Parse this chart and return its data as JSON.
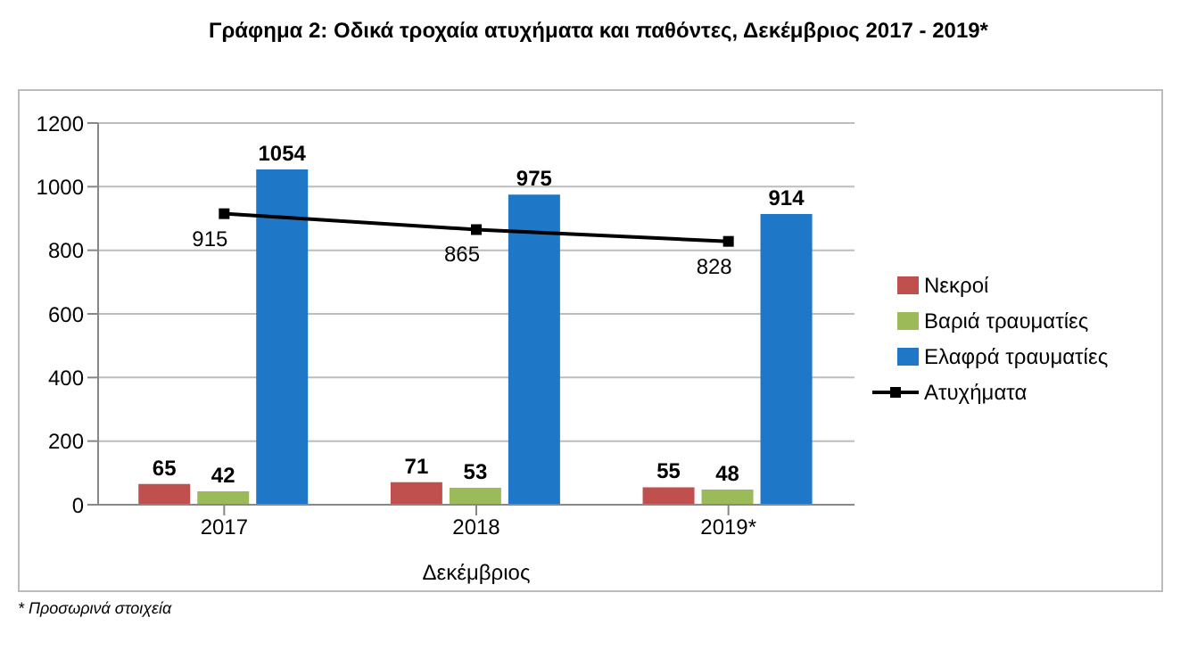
{
  "chart_data": {
    "type": "bar",
    "title": "Γράφημα 2: Οδικά τροχαία ατυχήματα και παθόντες, Δεκέμβριος 2017 - 2019*",
    "xlabel": "Δεκέμβριος",
    "categories": [
      "2017",
      "2018",
      "2019*"
    ],
    "series": [
      {
        "name": "Νεκροί",
        "color": "#c0504d",
        "values": [
          65,
          71,
          55
        ]
      },
      {
        "name": "Βαριά τραυματίες",
        "color": "#9bbb59",
        "values": [
          42,
          53,
          48
        ]
      },
      {
        "name": "Ελαφρά τραυματίες",
        "color": "#1f77c8",
        "values": [
          1054,
          975,
          914
        ]
      },
      {
        "name": "Ατυχήματα",
        "color": "#000000",
        "values": [
          915,
          865,
          828
        ],
        "type": "line",
        "marker": "square"
      }
    ],
    "ylim": [
      0,
      1200
    ],
    "yticks": [
      0,
      200,
      400,
      600,
      800,
      1000,
      1200
    ],
    "grid": "y",
    "legend": "right",
    "data_labels": true,
    "annotations": [
      "* Προσωρινά στοιχεία"
    ]
  }
}
